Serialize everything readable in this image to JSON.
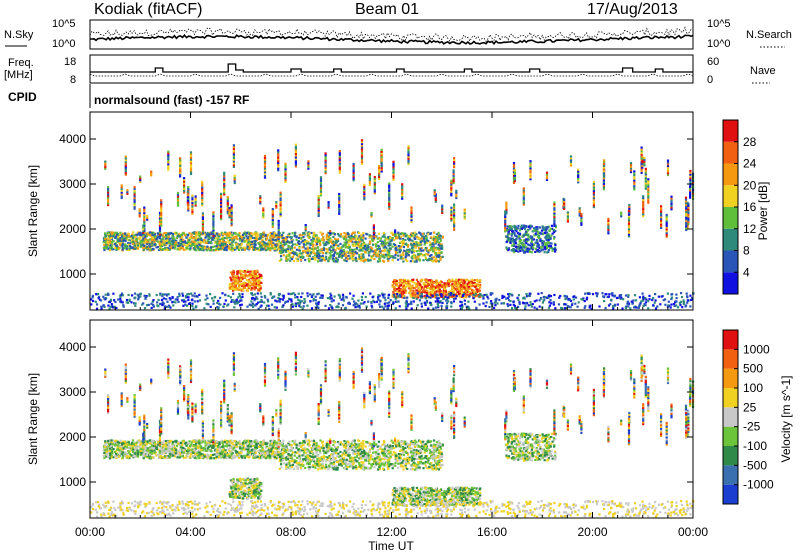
{
  "header": {
    "site": "Kodiak (fitACF)",
    "beam": "Beam 01",
    "date": "17/Aug/2013"
  },
  "noise_panel": {
    "left_label": "N.Sky",
    "right_label": "N.Search",
    "tick_top": "10^5",
    "tick_bottom": "10^0"
  },
  "freq_panel": {
    "left_label_1": "Freq.",
    "left_label_2": "[MHz]",
    "right_label": "Nave",
    "left_ticks": [
      "18",
      "8"
    ],
    "right_ticks": [
      "60",
      "0"
    ]
  },
  "cpid": {
    "label": "CPID",
    "text": "normalsound (fast) -157 RF"
  },
  "chart_data": [
    {
      "type": "heatmap",
      "title": "",
      "ylabel": "Slant Range [km]",
      "ylim": [
        200,
        4600
      ],
      "yticks": [
        "1000",
        "2000",
        "3000",
        "4000"
      ],
      "colorbar": {
        "label": "Power [dB]",
        "ticks": [
          "4",
          "8",
          "12",
          "16",
          "20",
          "24",
          "28"
        ],
        "range": [
          0,
          30
        ],
        "colors": [
          "#1010e0",
          "#2a55b8",
          "#2e8a7a",
          "#5fbf3a",
          "#f0d020",
          "#f59a10",
          "#f06010",
          "#e01010"
        ]
      },
      "echo_regions": [
        {
          "t": [
            0.5,
            7.5
          ],
          "r": [
            1550,
            1950
          ],
          "level": "mid"
        },
        {
          "t": [
            5.5,
            6.8
          ],
          "r": [
            650,
            1100
          ],
          "level": "high"
        },
        {
          "t": [
            7.5,
            14.0
          ],
          "r": [
            1300,
            1950
          ],
          "level": "mid"
        },
        {
          "t": [
            12.0,
            15.5
          ],
          "r": [
            500,
            900
          ],
          "level": "high"
        },
        {
          "t": [
            16.5,
            18.5
          ],
          "r": [
            1500,
            2100
          ],
          "level": "low"
        }
      ]
    },
    {
      "type": "heatmap",
      "title": "",
      "ylabel": "Slant Range [km]",
      "ylim": [
        200,
        4600
      ],
      "yticks": [
        "1000",
        "2000",
        "3000",
        "4000"
      ],
      "colorbar": {
        "label": "Velocity [m s^-1]",
        "ticks": [
          "1000",
          "500",
          "100",
          "25",
          "-25",
          "-100",
          "-500",
          "-1000"
        ],
        "colors": [
          "#1a3fd0",
          "#3a6fb0",
          "#2f8a4a",
          "#6cc43a",
          "#c8c8c8",
          "#f0d020",
          "#f59a10",
          "#f06010",
          "#e01010"
        ]
      }
    }
  ],
  "x_axis": {
    "label": "Time UT",
    "ticks": [
      "00:00",
      "04:00",
      "08:00",
      "12:00",
      "16:00",
      "20:00",
      "00:00"
    ],
    "range_hours": [
      0,
      24
    ]
  }
}
